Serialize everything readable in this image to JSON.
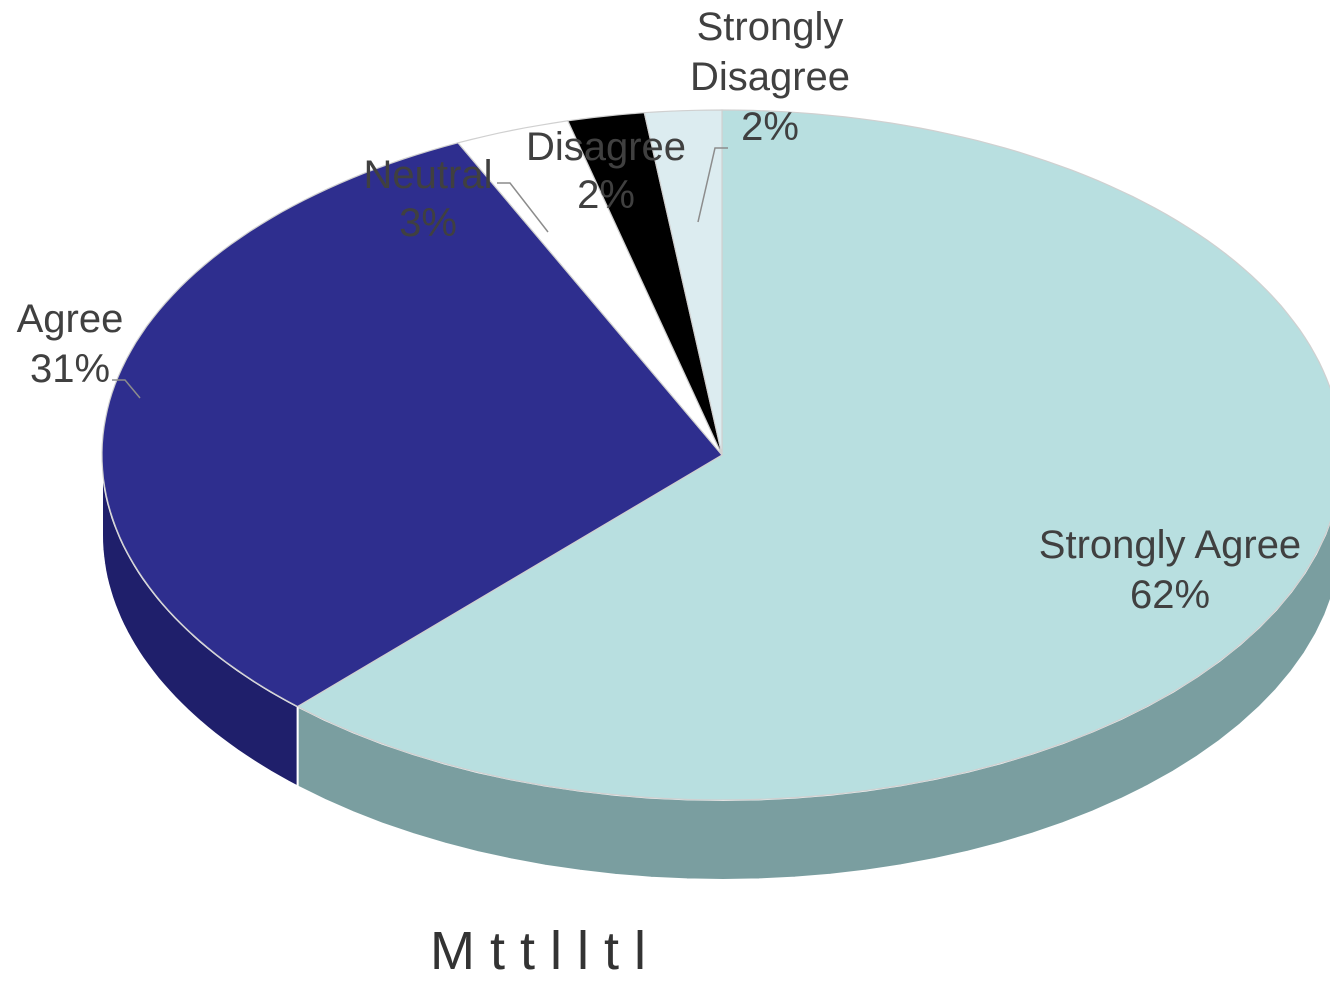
{
  "chart_data": {
    "type": "pie",
    "style": "3d",
    "categories": [
      "Strongly Agree",
      "Agree",
      "Neutral",
      "Disagree",
      "Strongly Disagree"
    ],
    "values": [
      62,
      31,
      3,
      2,
      2
    ],
    "value_unit": "%",
    "colors": [
      "#b8dfe0",
      "#2e2e8e",
      "#ffffff",
      "#000000",
      "#dcecf0"
    ],
    "side_colors": [
      "#7a9ea0",
      "#1f1f6b",
      "#d9d9d9",
      "#111111",
      "#a7bcc0"
    ],
    "data_labels": [
      {
        "category": "Strongly Agree",
        "percent": "62%"
      },
      {
        "category": "Agree",
        "percent": "31%"
      },
      {
        "category": "Neutral",
        "percent": "3%"
      },
      {
        "category": "Disagree",
        "percent": "2%"
      },
      {
        "category": "Strongly Disagree",
        "percent": "2%"
      }
    ],
    "legend": "none",
    "title": ""
  },
  "bottom_caption": "M          t   t  l          l       t  l"
}
